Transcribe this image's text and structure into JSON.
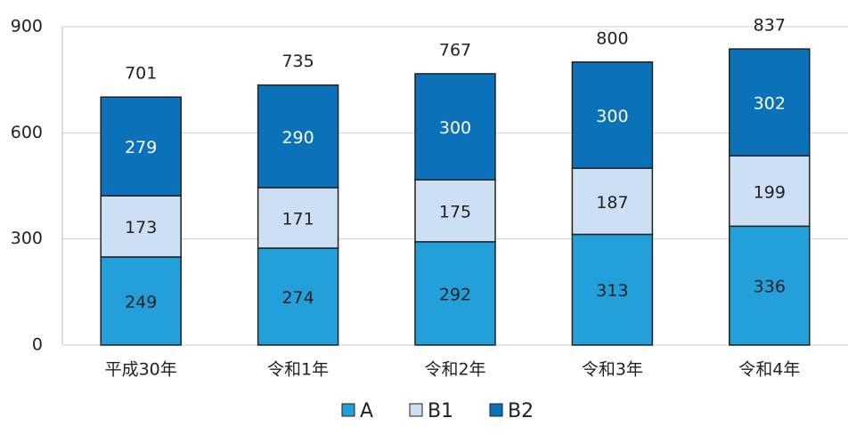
{
  "chart_data": {
    "type": "stacked_bar",
    "categories": [
      "平成30年",
      "令和1年",
      "令和2年",
      "令和3年",
      "令和4年"
    ],
    "series": [
      {
        "name": "A",
        "color": "#23a0da",
        "values": [
          249,
          274,
          292,
          313,
          336
        ]
      },
      {
        "name": "B1",
        "color": "#cddff2",
        "values": [
          173,
          171,
          175,
          187,
          199
        ]
      },
      {
        "name": "B2",
        "color": "#0b72b9",
        "values": [
          279,
          290,
          300,
          300,
          302
        ]
      }
    ],
    "totals": [
      701,
      735,
      767,
      800,
      837
    ],
    "ylim": [
      0,
      900
    ],
    "yticks": [
      0,
      300,
      600,
      900
    ],
    "grid": true
  }
}
